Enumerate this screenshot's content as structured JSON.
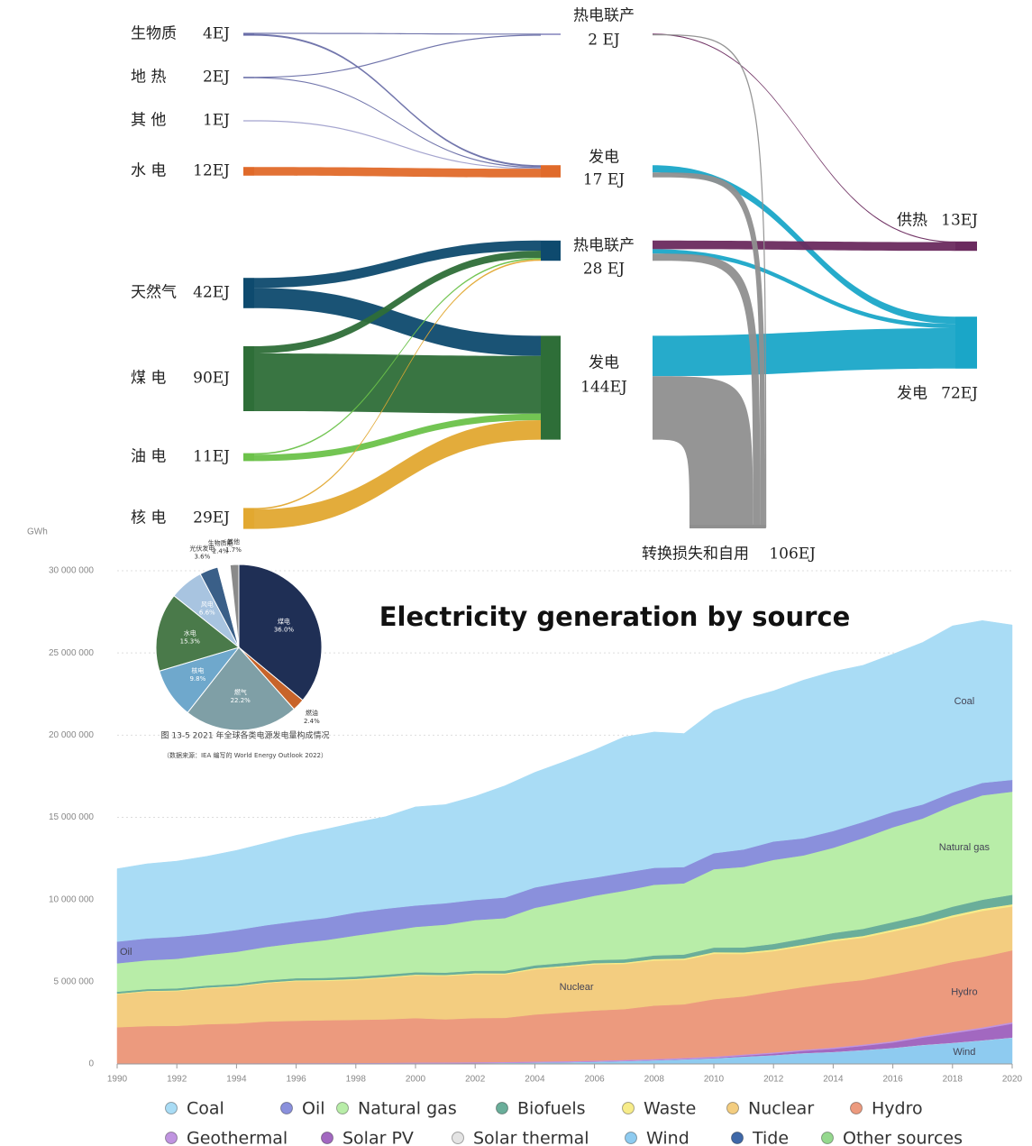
{
  "chart_data": [
    {
      "type": "sankey",
      "nodes": [
        {
          "label": "生物质",
          "value": 4,
          "value_label": "4EJ",
          "color": "#6a6fa8"
        },
        {
          "label": "地 热",
          "value": 2,
          "value_label": "2EJ",
          "color": "#6a6fa8"
        },
        {
          "label": "其 他",
          "value": 1,
          "value_label": "1EJ",
          "color": "#a0a0cc"
        },
        {
          "label": "水 电",
          "value": 12,
          "value_label": "12EJ",
          "color": "#e06a2a"
        },
        {
          "label": "天然气",
          "value": 42,
          "value_label": "42EJ",
          "color": "#0e4a6e"
        },
        {
          "label": "煤 电",
          "value": 90,
          "value_label": "90EJ",
          "color": "#2e6e38"
        },
        {
          "label": "油 电",
          "value": 11,
          "value_label": "11EJ",
          "color": "#6cc24a"
        },
        {
          "label": "核 电",
          "value": 29,
          "value_label": "29EJ",
          "color": "#e2a830"
        },
        {
          "label": "热电联产",
          "value": 2,
          "value_label": "2 EJ",
          "color": "#8a8ac0"
        },
        {
          "label": "发电",
          "value": 17,
          "value_label": "17 EJ",
          "color": "#e06a2a"
        },
        {
          "label": "热电联产",
          "value": 28,
          "value_label": "28 EJ",
          "color": "#0e4a6e"
        },
        {
          "label": "发电",
          "value": 144,
          "value_label": "144EJ",
          "color": "#2e6e38"
        },
        {
          "label": "供热",
          "value": 13,
          "value_label": "13EJ",
          "color": "#6a2a5e"
        },
        {
          "label": "发电",
          "value": 72,
          "value_label": "72EJ",
          "color": "#1aa6c8"
        },
        {
          "label": "转换损失和自用",
          "value": 106,
          "value_label": "106EJ",
          "color": "#8f8f8f"
        }
      ],
      "links": [
        {
          "source": 0,
          "target": 8,
          "value": 1.5
        },
        {
          "source": 0,
          "target": 9,
          "value": 2.5
        },
        {
          "source": 1,
          "target": 8,
          "value": 0.5
        },
        {
          "source": 1,
          "target": 9,
          "value": 1.5
        },
        {
          "source": 2,
          "target": 9,
          "value": 1
        },
        {
          "source": 3,
          "target": 9,
          "value": 12
        },
        {
          "source": 4,
          "target": 10,
          "value": 14
        },
        {
          "source": 4,
          "target": 11,
          "value": 28
        },
        {
          "source": 5,
          "target": 10,
          "value": 10
        },
        {
          "source": 5,
          "target": 11,
          "value": 80
        },
        {
          "source": 6,
          "target": 10,
          "value": 2
        },
        {
          "source": 6,
          "target": 11,
          "value": 9
        },
        {
          "source": 7,
          "target": 10,
          "value": 2
        },
        {
          "source": 7,
          "target": 11,
          "value": 27
        },
        {
          "source": 8,
          "target": 12,
          "value": 1
        },
        {
          "source": 8,
          "target": 14,
          "value": 1
        },
        {
          "source": 9,
          "target": 13,
          "value": 10
        },
        {
          "source": 9,
          "target": 14,
          "value": 7
        },
        {
          "source": 10,
          "target": 12,
          "value": 12
        },
        {
          "source": 10,
          "target": 13,
          "value": 6
        },
        {
          "source": 10,
          "target": 14,
          "value": 10
        },
        {
          "source": 11,
          "target": 13,
          "value": 56
        },
        {
          "source": 11,
          "target": 14,
          "value": 88
        }
      ]
    },
    {
      "type": "pie",
      "categories": [
        "煤电",
        "燃油",
        "燃气",
        "核电",
        "水电",
        "风电",
        "光伏发电",
        "生物质能",
        "其他"
      ],
      "values": [
        36.0,
        2.4,
        22.2,
        9.8,
        15.3,
        6.6,
        3.6,
        2.4,
        1.7
      ],
      "value_labels": [
        "36.0%",
        "2.4%",
        "22.2%",
        "9.8%",
        "15.3%",
        "6.6%",
        "3.6%",
        "2.4%",
        "1.7%"
      ],
      "colors": [
        "#1f2f55",
        "#c8642a",
        "#7f9fa6",
        "#6fa8cc",
        "#4a7a4a",
        "#a8c4e0",
        "#3a5f88",
        "#ffffff",
        "#8a8a8a"
      ],
      "caption": [
        "图 13-5   2021 年全球各类电源发电量构成情况",
        "（数据来源：IEA 编写的 World Energy Outlook 2022）"
      ]
    },
    {
      "type": "area",
      "title": "Electricity generation by source",
      "y_label": "GWh",
      "x": [
        1990,
        1991,
        1992,
        1993,
        1994,
        1995,
        1996,
        1997,
        1998,
        1999,
        2000,
        2001,
        2002,
        2003,
        2004,
        2005,
        2006,
        2007,
        2008,
        2009,
        2010,
        2011,
        2012,
        2013,
        2014,
        2015,
        2016,
        2017,
        2018,
        2019,
        2020
      ],
      "xlim": [
        1990,
        2020
      ],
      "xticks": [
        1990,
        1992,
        1994,
        1996,
        1998,
        2000,
        2002,
        2004,
        2006,
        2008,
        2010,
        2012,
        2014,
        2016,
        2018,
        2020
      ],
      "ylim": [
        0,
        30000000
      ],
      "yticks": [
        0,
        {
          "value": 5000000,
          "label": "5 000 000"
        },
        {
          "value": 10000000,
          "label": "10 000 000"
        },
        {
          "value": 15000000,
          "label": "15 000 000"
        },
        {
          "value": 20000000,
          "label": "20 000 000"
        },
        {
          "value": 25000000,
          "label": "25 000 000"
        },
        {
          "value": 30000000,
          "label": "30 000 000"
        }
      ],
      "grid": true,
      "stacked": true,
      "annotations": [
        "Coal",
        "Oil",
        "Natural gas",
        "Nuclear",
        "Hydro",
        "Wind"
      ],
      "series": [
        {
          "name": "Coal",
          "color": "#a9dcf5",
          "values": [
            4430000,
            4540000,
            4600000,
            4720000,
            4840000,
            5000000,
            5230000,
            5390000,
            5470000,
            5600000,
            6000000,
            6000000,
            6300000,
            6800000,
            7000000,
            7330000,
            7770000,
            8260000,
            8260000,
            8120000,
            8660000,
            9140000,
            9160000,
            9620000,
            9700000,
            9530000,
            9600000,
            9860000,
            10130000,
            9870000,
            9420000
          ]
        },
        {
          "name": "Oil",
          "color": "#8a90dc",
          "values": [
            1320000,
            1330000,
            1340000,
            1280000,
            1330000,
            1320000,
            1330000,
            1350000,
            1400000,
            1380000,
            1300000,
            1300000,
            1230000,
            1250000,
            1240000,
            1220000,
            1100000,
            1100000,
            1030000,
            990000,
            970000,
            1060000,
            1120000,
            1040000,
            1020000,
            980000,
            930000,
            850000,
            800000,
            760000,
            720000
          ]
        },
        {
          "name": "Natural gas",
          "color": "#b8eda8",
          "values": [
            1730000,
            1750000,
            1800000,
            1860000,
            1950000,
            2030000,
            2130000,
            2300000,
            2500000,
            2630000,
            2760000,
            2920000,
            3080000,
            3200000,
            3500000,
            3700000,
            3910000,
            4170000,
            4300000,
            4330000,
            4770000,
            4900000,
            5110000,
            5060000,
            5180000,
            5520000,
            5770000,
            5890000,
            6150000,
            6350000,
            6270000
          ]
        },
        {
          "name": "Biofuels",
          "color": "#6aae9a",
          "values": [
            110000,
            110000,
            120000,
            120000,
            120000,
            130000,
            130000,
            130000,
            140000,
            140000,
            140000,
            140000,
            150000,
            160000,
            170000,
            180000,
            190000,
            200000,
            220000,
            240000,
            280000,
            300000,
            340000,
            370000,
            400000,
            430000,
            450000,
            480000,
            520000,
            550000,
            580000
          ]
        },
        {
          "name": "Waste",
          "color": "#f7ec8a",
          "values": [
            40000,
            40000,
            50000,
            50000,
            50000,
            50000,
            50000,
            60000,
            60000,
            60000,
            60000,
            60000,
            70000,
            70000,
            70000,
            70000,
            80000,
            80000,
            90000,
            90000,
            100000,
            100000,
            100000,
            100000,
            110000,
            110000,
            120000,
            120000,
            130000,
            130000,
            130000
          ]
        },
        {
          "name": "Nuclear",
          "color": "#f3cd80",
          "values": [
            2010000,
            2100000,
            2110000,
            2180000,
            2240000,
            2330000,
            2410000,
            2390000,
            2430000,
            2520000,
            2590000,
            2640000,
            2660000,
            2640000,
            2750000,
            2770000,
            2800000,
            2750000,
            2740000,
            2700000,
            2760000,
            2580000,
            2460000,
            2480000,
            2540000,
            2570000,
            2610000,
            2640000,
            2710000,
            2800000,
            2670000
          ]
        },
        {
          "name": "Hydro",
          "color": "#ec9a7e",
          "values": [
            2190000,
            2260000,
            2270000,
            2370000,
            2410000,
            2530000,
            2570000,
            2600000,
            2620000,
            2640000,
            2700000,
            2620000,
            2680000,
            2680000,
            2860000,
            2960000,
            3050000,
            3090000,
            3250000,
            3260000,
            3490000,
            3530000,
            3700000,
            3810000,
            3920000,
            3930000,
            4060000,
            4110000,
            4250000,
            4290000,
            4370000
          ]
        },
        {
          "name": "Geothermal",
          "color": "#c094e0",
          "values": [
            36000,
            38000,
            39000,
            40000,
            40000,
            40000,
            42000,
            44000,
            46000,
            49000,
            52000,
            52000,
            53000,
            54000,
            56000,
            58000,
            59000,
            62000,
            65000,
            67000,
            68000,
            69000,
            70000,
            71000,
            77000,
            80000,
            82000,
            85000,
            89000,
            92000,
            94000
          ]
        },
        {
          "name": "Solar PV",
          "color": "#a268c0",
          "values": [
            0,
            0,
            0,
            0,
            0,
            0,
            0,
            0,
            0,
            1000,
            1000,
            1000,
            2000,
            2000,
            3000,
            4000,
            6000,
            8000,
            12000,
            20000,
            32000,
            62000,
            98000,
            135000,
            190000,
            250000,
            330000,
            450000,
            580000,
            690000,
            840000
          ]
        },
        {
          "name": "Solar thermal",
          "color": "#e4e4e4",
          "values": [
            1000,
            1000,
            1000,
            1000,
            1000,
            1000,
            1000,
            1000,
            1000,
            1000,
            1000,
            1000,
            1000,
            1000,
            1000,
            1000,
            1000,
            1000,
            1000,
            2000,
            2000,
            4000,
            5000,
            9000,
            10000,
            10000,
            11000,
            12000,
            12000,
            13000,
            13000
          ]
        },
        {
          "name": "Wind",
          "color": "#8ecbf0",
          "values": [
            4000,
            4000,
            5000,
            6000,
            7000,
            8000,
            12000,
            12000,
            16000,
            21000,
            31000,
            38000,
            52000,
            63000,
            85000,
            104000,
            133000,
            171000,
            220000,
            276000,
            342000,
            437000,
            524000,
            645000,
            716000,
            833000,
            959000,
            1140000,
            1270000,
            1420000,
            1590000
          ]
        },
        {
          "name": "Tide",
          "color": "#3f68a8",
          "values": [
            600,
            600,
            600,
            600,
            600,
            600,
            600,
            600,
            600,
            600,
            600,
            600,
            600,
            600,
            600,
            600,
            600,
            600,
            600,
            600,
            600,
            1000,
            1000,
            1000,
            1000,
            1000,
            1000,
            1000,
            1000,
            1000,
            1000
          ]
        },
        {
          "name": "Other sources",
          "color": "#95d88e",
          "values": [
            2000,
            2000,
            2000,
            2000,
            2000,
            2000,
            2000,
            2000,
            2000,
            2000,
            3000,
            3000,
            3000,
            3000,
            3000,
            3000,
            3000,
            3000,
            3000,
            3000,
            5000,
            5000,
            5000,
            5000,
            5000,
            5000,
            5000,
            5000,
            5000,
            5000,
            5000
          ]
        }
      ]
    }
  ]
}
